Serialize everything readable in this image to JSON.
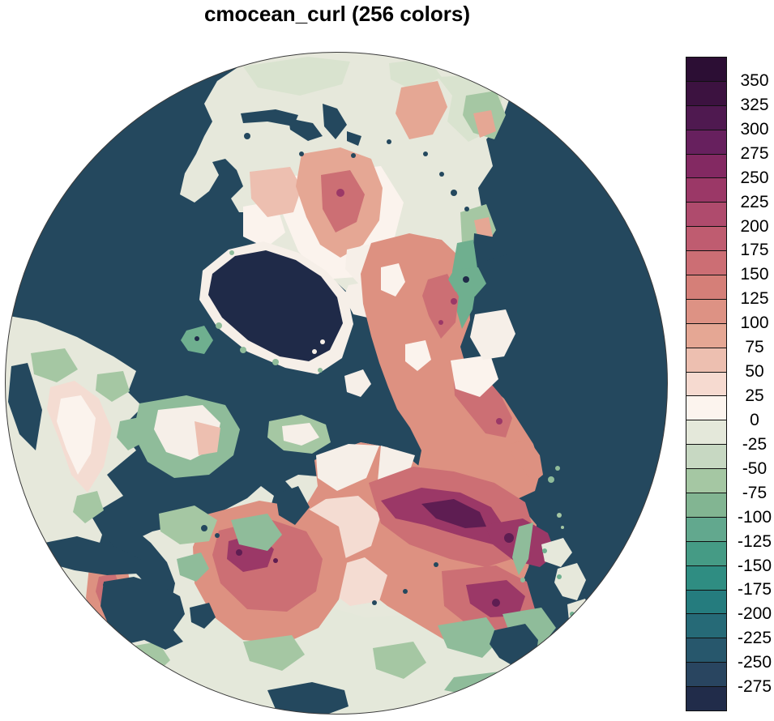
{
  "title": "cmocean_curl (256 colors)",
  "colorbar": {
    "tick_labels": [
      "350",
      "325",
      "300",
      "275",
      "250",
      "225",
      "200",
      "175",
      "150",
      "125",
      "100",
      "75",
      "50",
      "25",
      "0",
      "-25",
      "-50",
      "-75",
      "-100",
      "-125",
      "-150",
      "-175",
      "-200",
      "-225",
      "-250",
      "-275"
    ],
    "box_colors": [
      "#2C0E34",
      "#3C1240",
      "#4F1950",
      "#67205E",
      "#832962",
      "#9B3867",
      "#AF4B6D",
      "#BF5C70",
      "#CC6E74",
      "#D57F78",
      "#DD9284",
      "#E5A794",
      "#EDBFB0",
      "#F6DAD0",
      "#FCF4EE",
      "#E4E8DA",
      "#C7D8C2",
      "#A5C7A3",
      "#82B592",
      "#62A88E",
      "#459B85",
      "#2F8D82",
      "#257C7E",
      "#266A77",
      "#27576C",
      "#294560",
      "#212C4A"
    ],
    "border_color": "#101010"
  },
  "map": {
    "colors": {
      "ocean": "#24485E",
      "outline": "#3A3A3A",
      "land": "#E6E8DB",
      "land_tint": "#D9E3CF",
      "pale_bottom": "#E4E8DA",
      "green_soft": "#BFD5BC",
      "green": "#A5C7A3",
      "green_mid": "#8FBC9A",
      "green_deep": "#6FAF8F",
      "cream": "#F6EFE8",
      "white": "#FBF3ED",
      "pink_pale": "#F4DCD2",
      "blush": "#EDBFB0",
      "salmon_light": "#E5A794",
      "salmon": "#DD9181",
      "red": "#CC6F74",
      "red_deep": "#B14D6E",
      "maroon": "#9B3867",
      "maroon_dark": "#5E1D52",
      "navy": "#1F2A48"
    }
  },
  "chart_data": {
    "type": "heatmap",
    "title": "cmocean_curl (256 colors)",
    "colormap": "cmocean_curl",
    "n_colors": 256,
    "projection": "north polar hemisphere disc",
    "legend_position": "right",
    "colorbar_levels": [
      -275,
      -250,
      -225,
      -200,
      -175,
      -150,
      -125,
      -100,
      -75,
      -50,
      -25,
      0,
      25,
      50,
      75,
      100,
      125,
      150,
      175,
      200,
      225,
      250,
      275,
      300,
      325,
      350
    ],
    "colorbar_colors_top_to_bottom": [
      "#2C0E34",
      "#3C1240",
      "#4F1950",
      "#67205E",
      "#832962",
      "#9B3867",
      "#AF4B6D",
      "#BF5C70",
      "#CC6E74",
      "#D57F78",
      "#DD9284",
      "#E5A794",
      "#EDBFB0",
      "#F6DAD0",
      "#FCF4EE",
      "#E4E8DA",
      "#C7D8C2",
      "#A5C7A3",
      "#82B592",
      "#62A88E",
      "#459B85",
      "#2F8D82",
      "#257C7E",
      "#266A77",
      "#27576C",
      "#294560",
      "#212C4A"
    ]
  }
}
